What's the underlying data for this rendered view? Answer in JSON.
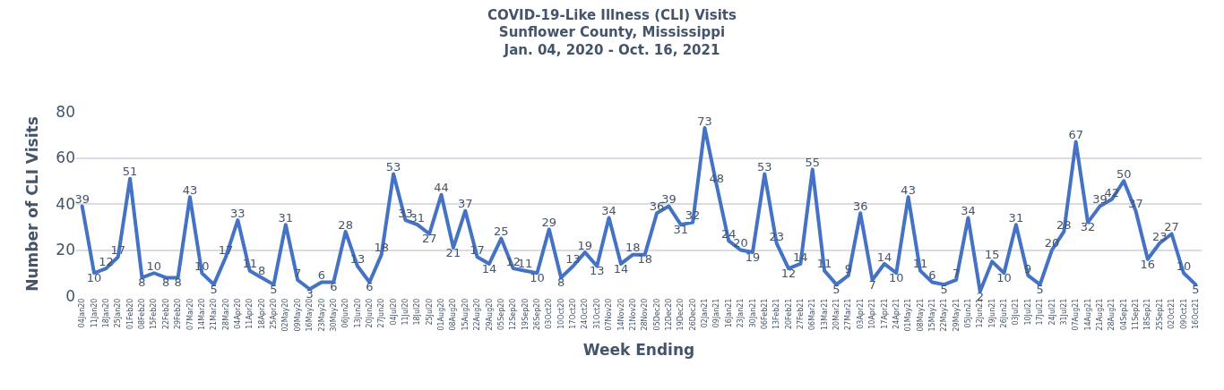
{
  "chart_data": {
    "type": "line",
    "title": "COVID-19-Like Illness (CLI) Visits\nSunflower County, Mississippi\nJan. 04, 2020 - Oct. 16, 2021",
    "xlabel": "Week Ending",
    "ylabel": "Number of CLI Visits",
    "categories": [
      "04Jan20",
      "11Jan20",
      "18Jan20",
      "25Jan20",
      "01Feb20",
      "08Feb20",
      "15Feb20",
      "22Feb20",
      "29Feb20",
      "07Mar20",
      "14Mar20",
      "21Mar20",
      "28Mar20",
      "04Apr20",
      "11Apr20",
      "18Apr20",
      "25Apr20",
      "02May20",
      "09May20",
      "16May20",
      "23May20",
      "30May20",
      "06Jun20",
      "13Jun20",
      "20Jun20",
      "27Jun20",
      "04Jul20",
      "11Jul20",
      "18Jul20",
      "25Jul20",
      "01Aug20",
      "08Aug20",
      "15Aug20",
      "22Aug20",
      "29Aug20",
      "05Sep20",
      "12Sep20",
      "19Sep20",
      "26Sep20",
      "03Oct20",
      "10Oct20",
      "17Oct20",
      "24Oct20",
      "31Oct20",
      "07Nov20",
      "14Nov20",
      "21Nov20",
      "28Nov20",
      "05Dec20",
      "12Dec20",
      "19Dec20",
      "26Dec20",
      "02Jan21",
      "09Jan21",
      "16Jan21",
      "23Jan21",
      "30Jan21",
      "06Feb21",
      "13Feb21",
      "20Feb21",
      "27Feb21",
      "06Mar21",
      "13Mar21",
      "20Mar21",
      "27Mar21",
      "03Apr21",
      "10Apr21",
      "17Apr21",
      "24Apr21",
      "01May21",
      "08May21",
      "15May21",
      "22May21",
      "29May21",
      "05Jun21",
      "12Jun21",
      "19Jun21",
      "26Jun21",
      "03Jul21",
      "10Jul21",
      "17Jul21",
      "24Jul21",
      "31Jul21",
      "07Aug21",
      "14Aug21",
      "21Aug21",
      "28Aug21",
      "04Sep21",
      "11Sep21",
      "18Sep21",
      "25Sep21",
      "02Oct21",
      "09Oct21",
      "16Oct21"
    ],
    "series": [
      {
        "color": "#4472c4",
        "values": [
          39,
          10,
          12,
          17,
          51,
          8,
          10,
          8,
          8,
          43,
          10,
          5,
          17,
          33,
          11,
          8,
          5,
          31,
          7,
          3,
          6,
          6,
          28,
          13,
          6,
          18,
          53,
          33,
          31,
          27,
          44,
          21,
          37,
          17,
          14,
          25,
          12,
          11,
          10,
          29,
          8,
          13,
          19,
          13,
          34,
          14,
          18,
          18,
          36,
          39,
          31,
          32,
          73,
          48,
          24,
          20,
          19,
          53,
          23,
          12,
          14,
          55,
          11,
          5,
          9,
          36,
          7,
          14,
          10,
          43,
          11,
          6,
          5,
          7,
          34,
          2,
          15,
          10,
          31,
          9,
          5,
          20,
          28,
          67,
          32,
          39,
          42,
          50,
          37,
          16,
          23,
          27,
          10,
          5
        ]
      }
    ],
    "ylim": [
      0,
      80
    ],
    "yticks": [
      0,
      20,
      40,
      60,
      80
    ],
    "grid": "y",
    "data_labels": true,
    "line_style": "solid",
    "marker": "none"
  }
}
